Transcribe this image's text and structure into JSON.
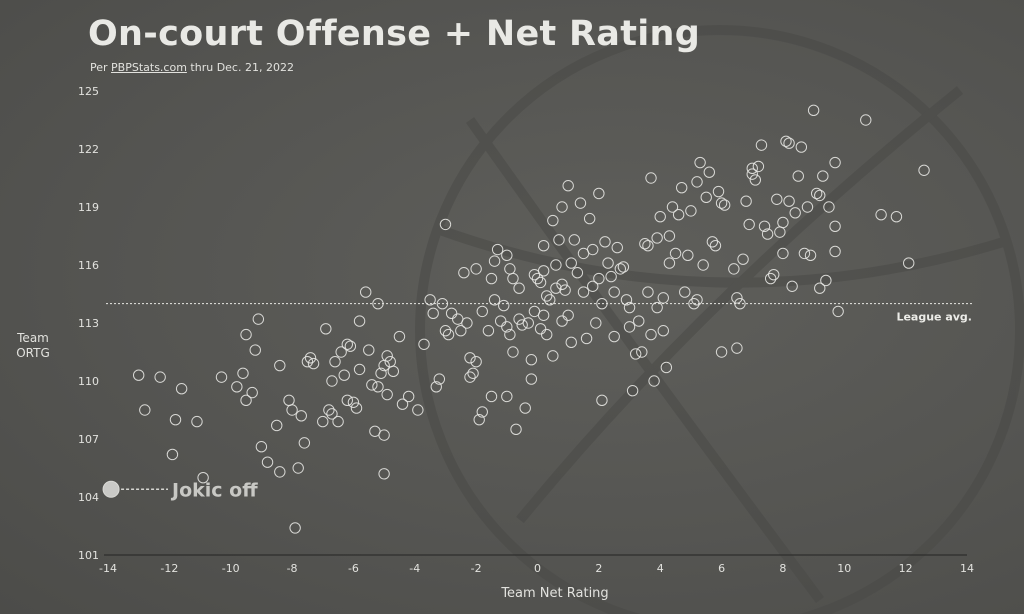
{
  "header": {
    "title": "On-court Offense + Net Rating",
    "subtitle_prefix": "Per ",
    "subtitle_source": "PBPStats.com",
    "subtitle_suffix": " thru Dec. 21, 2022"
  },
  "colors": {
    "background": "#5a5a57",
    "point_stroke": "#e6e6e2",
    "highlight_fill": "#c9c9c6",
    "text": "#e8e8e4"
  },
  "chart_data": {
    "type": "scatter",
    "title": "On-court Offense + Net Rating",
    "subtitle": "Per PBPStats.com thru Dec. 21, 2022",
    "xlabel": "Team Net Rating",
    "ylabel": "Team ORTG",
    "xlim": [
      -14,
      14
    ],
    "ylim": [
      101,
      125
    ],
    "xticks": [
      -14,
      -12,
      -10,
      -8,
      -6,
      -4,
      -2,
      0,
      2,
      4,
      6,
      8,
      10,
      12,
      14
    ],
    "yticks": [
      101,
      104,
      107,
      110,
      113,
      116,
      119,
      122,
      125
    ],
    "grid": false,
    "reference_line": {
      "y": 114,
      "label": "League avg."
    },
    "highlight": {
      "x": -13.9,
      "y": 104.4,
      "label": "Jokic off"
    },
    "points": [
      [
        -13.0,
        110.3
      ],
      [
        -12.8,
        108.5
      ],
      [
        -12.3,
        110.2
      ],
      [
        -11.9,
        106.2
      ],
      [
        -11.8,
        108.0
      ],
      [
        -11.6,
        109.6
      ],
      [
        -11.1,
        107.9
      ],
      [
        -10.9,
        105.0
      ],
      [
        -10.3,
        110.2
      ],
      [
        -9.8,
        109.7
      ],
      [
        -9.6,
        110.4
      ],
      [
        -9.5,
        109.0
      ],
      [
        -9.5,
        112.4
      ],
      [
        -9.3,
        109.4
      ],
      [
        -9.2,
        111.6
      ],
      [
        -9.1,
        113.2
      ],
      [
        -9.0,
        106.6
      ],
      [
        -8.8,
        105.8
      ],
      [
        -8.5,
        107.7
      ],
      [
        -8.4,
        105.3
      ],
      [
        -8.4,
        110.8
      ],
      [
        -8.1,
        109.0
      ],
      [
        -8.0,
        108.5
      ],
      [
        -7.9,
        102.4
      ],
      [
        -7.8,
        105.5
      ],
      [
        -7.7,
        108.2
      ],
      [
        -7.6,
        106.8
      ],
      [
        -7.5,
        111.0
      ],
      [
        -7.4,
        111.2
      ],
      [
        -7.3,
        110.9
      ],
      [
        -7.0,
        107.9
      ],
      [
        -6.9,
        112.7
      ],
      [
        -6.8,
        108.5
      ],
      [
        -6.7,
        108.3
      ],
      [
        -6.7,
        110.0
      ],
      [
        -6.6,
        111.0
      ],
      [
        -6.5,
        107.9
      ],
      [
        -6.4,
        111.5
      ],
      [
        -6.3,
        110.3
      ],
      [
        -6.2,
        109.0
      ],
      [
        -6.2,
        111.9
      ],
      [
        -6.1,
        111.8
      ],
      [
        -6.0,
        108.9
      ],
      [
        -5.9,
        108.6
      ],
      [
        -5.8,
        110.6
      ],
      [
        -5.8,
        113.1
      ],
      [
        -5.6,
        114.6
      ],
      [
        -5.5,
        111.6
      ],
      [
        -5.4,
        109.8
      ],
      [
        -5.3,
        107.4
      ],
      [
        -5.2,
        114.0
      ],
      [
        -5.2,
        109.7
      ],
      [
        -5.1,
        110.4
      ],
      [
        -5.0,
        107.2
      ],
      [
        -5.0,
        105.2
      ],
      [
        -5.0,
        110.8
      ],
      [
        -4.9,
        109.3
      ],
      [
        -4.9,
        111.3
      ],
      [
        -4.8,
        111.0
      ],
      [
        -4.7,
        110.5
      ],
      [
        -4.5,
        112.3
      ],
      [
        -4.4,
        108.8
      ],
      [
        -4.2,
        109.2
      ],
      [
        -3.9,
        108.5
      ],
      [
        -3.7,
        111.9
      ],
      [
        -3.5,
        114.2
      ],
      [
        -3.4,
        113.5
      ],
      [
        -3.3,
        109.7
      ],
      [
        -3.2,
        110.1
      ],
      [
        -3.1,
        114.0
      ],
      [
        -3.0,
        118.1
      ],
      [
        -3.0,
        112.6
      ],
      [
        -2.9,
        112.4
      ],
      [
        -2.8,
        113.5
      ],
      [
        -2.6,
        113.2
      ],
      [
        -2.5,
        112.6
      ],
      [
        -2.4,
        115.6
      ],
      [
        -2.3,
        113.0
      ],
      [
        -2.2,
        111.2
      ],
      [
        -2.2,
        110.2
      ],
      [
        -2.1,
        110.4
      ],
      [
        -2.0,
        111.0
      ],
      [
        -2.0,
        115.8
      ],
      [
        -1.9,
        108.0
      ],
      [
        -1.8,
        108.4
      ],
      [
        -1.8,
        113.6
      ],
      [
        -1.6,
        112.6
      ],
      [
        -1.5,
        115.3
      ],
      [
        -1.5,
        109.2
      ],
      [
        -1.4,
        116.2
      ],
      [
        -1.4,
        114.2
      ],
      [
        -1.3,
        116.8
      ],
      [
        -1.2,
        113.1
      ],
      [
        -1.1,
        113.9
      ],
      [
        -1.0,
        116.5
      ],
      [
        -1.0,
        112.8
      ],
      [
        -1.0,
        109.2
      ],
      [
        -0.9,
        115.8
      ],
      [
        -0.9,
        112.4
      ],
      [
        -0.8,
        115.3
      ],
      [
        -0.8,
        111.5
      ],
      [
        -0.7,
        107.5
      ],
      [
        -0.6,
        114.8
      ],
      [
        -0.6,
        113.2
      ],
      [
        -0.5,
        112.9
      ],
      [
        -0.4,
        108.6
      ],
      [
        -0.3,
        113.0
      ],
      [
        -0.2,
        110.1
      ],
      [
        -0.2,
        111.1
      ],
      [
        -0.1,
        113.6
      ],
      [
        -0.1,
        115.5
      ],
      [
        0.0,
        115.3
      ],
      [
        0.1,
        115.1
      ],
      [
        0.1,
        112.7
      ],
      [
        0.2,
        117.0
      ],
      [
        0.2,
        115.7
      ],
      [
        0.2,
        113.4
      ],
      [
        0.3,
        114.4
      ],
      [
        0.3,
        112.4
      ],
      [
        0.4,
        114.2
      ],
      [
        0.5,
        118.3
      ],
      [
        0.5,
        111.3
      ],
      [
        0.6,
        116.0
      ],
      [
        0.6,
        114.8
      ],
      [
        0.7,
        117.3
      ],
      [
        0.8,
        119.0
      ],
      [
        0.8,
        115.0
      ],
      [
        0.8,
        113.1
      ],
      [
        0.9,
        114.7
      ],
      [
        1.0,
        120.1
      ],
      [
        1.0,
        113.4
      ],
      [
        1.1,
        116.1
      ],
      [
        1.1,
        112.0
      ],
      [
        1.2,
        117.3
      ],
      [
        1.3,
        115.6
      ],
      [
        1.4,
        119.2
      ],
      [
        1.5,
        116.6
      ],
      [
        1.5,
        114.6
      ],
      [
        1.6,
        112.2
      ],
      [
        1.7,
        118.4
      ],
      [
        1.8,
        116.8
      ],
      [
        1.8,
        114.9
      ],
      [
        1.9,
        113.0
      ],
      [
        2.0,
        119.7
      ],
      [
        2.0,
        115.3
      ],
      [
        2.1,
        114.0
      ],
      [
        2.1,
        109.0
      ],
      [
        2.2,
        117.2
      ],
      [
        2.3,
        116.1
      ],
      [
        2.4,
        115.4
      ],
      [
        2.5,
        114.6
      ],
      [
        2.5,
        112.3
      ],
      [
        2.6,
        116.9
      ],
      [
        2.7,
        115.8
      ],
      [
        2.8,
        115.9
      ],
      [
        2.9,
        114.2
      ],
      [
        3.0,
        113.8
      ],
      [
        3.0,
        112.8
      ],
      [
        3.1,
        109.5
      ],
      [
        3.2,
        111.4
      ],
      [
        3.3,
        113.1
      ],
      [
        3.4,
        111.5
      ],
      [
        3.5,
        117.1
      ],
      [
        3.6,
        117.0
      ],
      [
        3.6,
        114.6
      ],
      [
        3.7,
        120.5
      ],
      [
        3.7,
        112.4
      ],
      [
        3.8,
        110.0
      ],
      [
        3.9,
        117.4
      ],
      [
        3.9,
        113.8
      ],
      [
        4.0,
        118.5
      ],
      [
        4.1,
        114.3
      ],
      [
        4.1,
        112.6
      ],
      [
        4.2,
        110.7
      ],
      [
        4.3,
        116.1
      ],
      [
        4.3,
        117.5
      ],
      [
        4.4,
        119.0
      ],
      [
        4.5,
        116.6
      ],
      [
        4.6,
        118.6
      ],
      [
        4.7,
        120.0
      ],
      [
        4.8,
        114.6
      ],
      [
        4.9,
        116.5
      ],
      [
        5.0,
        118.8
      ],
      [
        5.1,
        114.0
      ],
      [
        5.2,
        114.2
      ],
      [
        5.2,
        120.3
      ],
      [
        5.3,
        121.3
      ],
      [
        5.4,
        116.0
      ],
      [
        5.5,
        119.5
      ],
      [
        5.6,
        120.8
      ],
      [
        5.7,
        117.2
      ],
      [
        5.8,
        117.0
      ],
      [
        5.9,
        119.8
      ],
      [
        6.0,
        111.5
      ],
      [
        6.0,
        119.2
      ],
      [
        6.1,
        119.1
      ],
      [
        6.4,
        115.8
      ],
      [
        6.5,
        111.7
      ],
      [
        6.5,
        114.3
      ],
      [
        6.6,
        114.0
      ],
      [
        6.7,
        116.3
      ],
      [
        6.8,
        119.3
      ],
      [
        6.9,
        118.1
      ],
      [
        7.0,
        121.0
      ],
      [
        7.0,
        120.7
      ],
      [
        7.1,
        120.4
      ],
      [
        7.2,
        121.1
      ],
      [
        7.3,
        122.2
      ],
      [
        7.4,
        118.0
      ],
      [
        7.5,
        117.6
      ],
      [
        7.6,
        115.3
      ],
      [
        7.7,
        115.5
      ],
      [
        7.8,
        119.4
      ],
      [
        7.9,
        117.7
      ],
      [
        8.0,
        116.6
      ],
      [
        8.0,
        118.2
      ],
      [
        8.1,
        122.4
      ],
      [
        8.2,
        122.3
      ],
      [
        8.2,
        119.3
      ],
      [
        8.3,
        114.9
      ],
      [
        8.4,
        118.7
      ],
      [
        8.5,
        120.6
      ],
      [
        8.6,
        122.1
      ],
      [
        8.7,
        116.6
      ],
      [
        8.8,
        119.0
      ],
      [
        8.9,
        116.5
      ],
      [
        9.0,
        124.0
      ],
      [
        9.1,
        119.7
      ],
      [
        9.2,
        119.6
      ],
      [
        9.2,
        114.8
      ],
      [
        9.3,
        120.6
      ],
      [
        9.4,
        115.2
      ],
      [
        9.5,
        119.0
      ],
      [
        9.7,
        121.3
      ],
      [
        9.7,
        118.0
      ],
      [
        9.7,
        116.7
      ],
      [
        9.8,
        113.6
      ],
      [
        10.7,
        123.5
      ],
      [
        11.2,
        118.6
      ],
      [
        11.7,
        118.5
      ],
      [
        12.1,
        116.1
      ],
      [
        12.6,
        120.9
      ]
    ]
  }
}
